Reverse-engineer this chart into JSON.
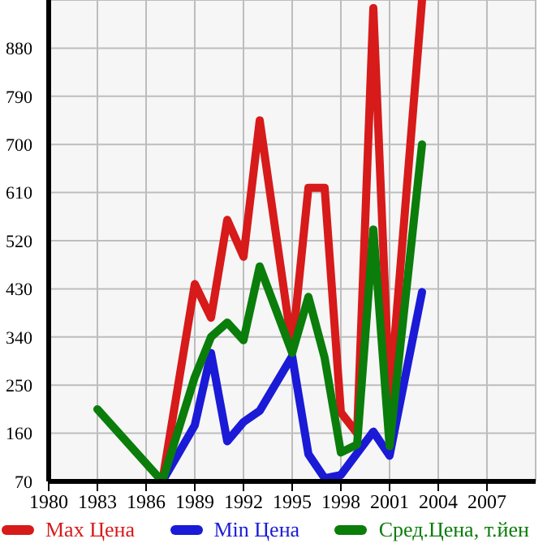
{
  "chart_data": {
    "type": "line",
    "xlim": [
      1980,
      2010
    ],
    "xticks": [
      1980,
      1983,
      1986,
      1989,
      1992,
      1995,
      1998,
      2001,
      2004,
      2007
    ],
    "ylim": [
      70,
      970
    ],
    "yticks": [
      70,
      160,
      250,
      340,
      430,
      520,
      610,
      700,
      790,
      880
    ],
    "grid": true,
    "legend": "bottom",
    "marker": "none",
    "line_style": "solid",
    "series": [
      {
        "name": "Max Цена",
        "color": "#d71a1a",
        "x": [
          1987,
          1989,
          1990,
          1991,
          1992,
          1993,
          1995,
          1996,
          1997,
          1998,
          1999,
          2000,
          2001,
          2003
        ],
        "values": [
          70,
          439,
          376,
          559,
          490,
          745,
          320,
          619,
          619,
          199,
          160,
          955,
          220,
          970
        ]
      },
      {
        "name": "Min Цена",
        "color": "#1a1ad7",
        "x": [
          1987,
          1989,
          1990,
          1991,
          1992,
          1993,
          1995,
          1996,
          1997,
          1998,
          2000,
          2001,
          2003
        ],
        "values": [
          70,
          175,
          310,
          145,
          181,
          202,
          304,
          121,
          76,
          82,
          163,
          118,
          424
        ]
      },
      {
        "name": "Сред.Цена, т.йен",
        "color": "#0a7d0a",
        "x": [
          1983,
          1987,
          1989,
          1990,
          1991,
          1992,
          1993,
          1995,
          1996,
          1997,
          1998,
          1999,
          2000,
          2001,
          2003
        ],
        "values": [
          205,
          70,
          265,
          340,
          367,
          334,
          472,
          310,
          415,
          301,
          124,
          139,
          541,
          136,
          700
        ]
      }
    ]
  }
}
